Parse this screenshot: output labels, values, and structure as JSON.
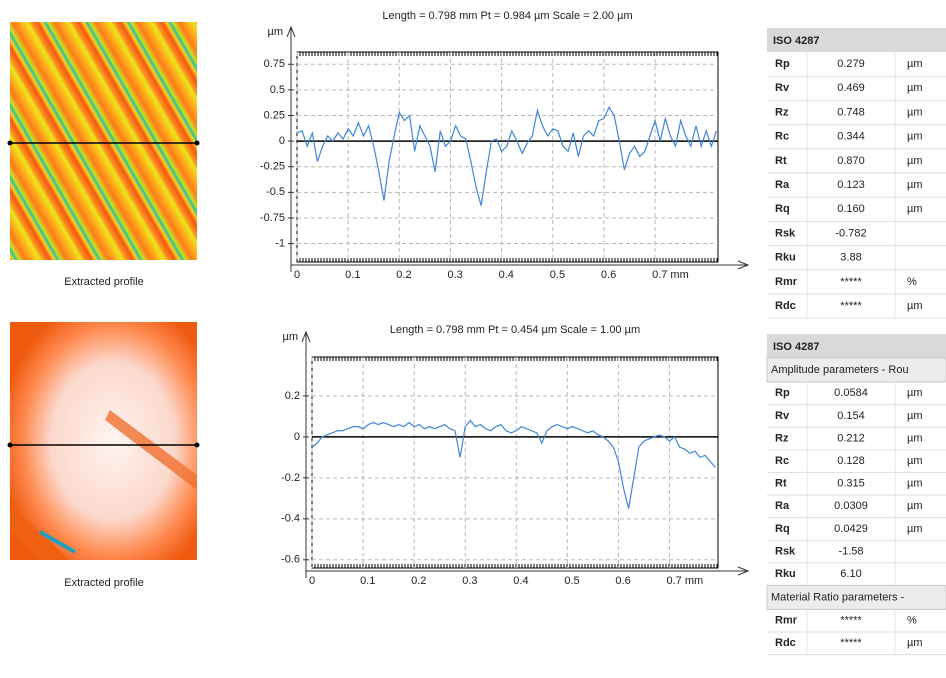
{
  "chart_data": [
    {
      "type": "line",
      "title": "Length = 0.798 mm  Pt = 0.984 µm  Scale = 2.00 µm",
      "y_label": "µm",
      "color": "#3f86d6",
      "xlim": [
        0,
        0.823
      ],
      "ylim": [
        -1.18,
        0.87
      ],
      "xticks": [
        0,
        0.1,
        0.2,
        0.3,
        0.4,
        0.5,
        0.6,
        {
          "value": 0.7,
          "label": "0.7 mm"
        }
      ],
      "yticks": [
        0.75,
        0.5,
        0.25,
        0,
        -0.25,
        -0.5,
        -0.75,
        -1
      ],
      "grid": true,
      "x": [
        0,
        0.01,
        0.02,
        0.03,
        0.04,
        0.05,
        0.06,
        0.07,
        0.08,
        0.09,
        0.1,
        0.11,
        0.12,
        0.13,
        0.14,
        0.15,
        0.16,
        0.17,
        0.18,
        0.19,
        0.2,
        0.21,
        0.22,
        0.23,
        0.24,
        0.25,
        0.26,
        0.27,
        0.28,
        0.29,
        0.3,
        0.31,
        0.32,
        0.33,
        0.34,
        0.35,
        0.36,
        0.37,
        0.38,
        0.39,
        0.4,
        0.41,
        0.42,
        0.43,
        0.44,
        0.45,
        0.46,
        0.47,
        0.48,
        0.49,
        0.5,
        0.51,
        0.52,
        0.53,
        0.54,
        0.55,
        0.56,
        0.57,
        0.58,
        0.59,
        0.6,
        0.61,
        0.62,
        0.63,
        0.64,
        0.65,
        0.66,
        0.67,
        0.68,
        0.69,
        0.7,
        0.71,
        0.72,
        0.73,
        0.74,
        0.75,
        0.76,
        0.77,
        0.78,
        0.79,
        0.8,
        0.81,
        0.82
      ],
      "values": [
        0.08,
        0.1,
        -0.05,
        0.08,
        -0.2,
        -0.05,
        0.05,
        0,
        0.08,
        0.02,
        0.12,
        0.05,
        0.18,
        0.05,
        0.15,
        -0.05,
        -0.3,
        -0.58,
        -0.2,
        0.05,
        0.28,
        0.2,
        0.25,
        -0.1,
        0.15,
        0.05,
        -0.05,
        -0.3,
        0.1,
        -0.05,
        0,
        0.15,
        0.05,
        0.02,
        -0.2,
        -0.45,
        -0.63,
        -0.3,
        0,
        0.02,
        -0.1,
        -0.05,
        0.1,
        0,
        -0.12,
        -0.02,
        0.05,
        0.3,
        0.15,
        0.05,
        0.12,
        0.1,
        -0.05,
        -0.1,
        0.08,
        -0.15,
        0.05,
        0.1,
        0.05,
        0.2,
        0.22,
        0.33,
        0.25,
        0,
        -0.28,
        -0.12,
        -0.05,
        -0.15,
        -0.1,
        0.05,
        0.2,
        0,
        0.22,
        0.05,
        -0.05,
        0.2,
        0.05,
        -0.05,
        0.15,
        -0.05,
        0.1,
        -0.05,
        0.1
      ]
    },
    {
      "type": "line",
      "title": "Length = 0.798 mm  Pt = 0.454 µm  Scale = 1.00 µm",
      "y_label": "µm",
      "color": "#3f86d6",
      "xlim": [
        0,
        0.795
      ],
      "ylim": [
        -0.64,
        0.39
      ],
      "xticks": [
        0,
        0.1,
        0.2,
        0.3,
        0.4,
        0.5,
        0.6,
        {
          "value": 0.7,
          "label": "0.7 mm"
        }
      ],
      "yticks": [
        0.2,
        0,
        -0.2,
        -0.4,
        -0.6
      ],
      "grid": true,
      "x": [
        0,
        0.01,
        0.02,
        0.03,
        0.04,
        0.05,
        0.06,
        0.07,
        0.08,
        0.09,
        0.1,
        0.11,
        0.12,
        0.13,
        0.14,
        0.15,
        0.16,
        0.17,
        0.18,
        0.19,
        0.2,
        0.21,
        0.22,
        0.23,
        0.24,
        0.25,
        0.26,
        0.27,
        0.28,
        0.29,
        0.3,
        0.31,
        0.32,
        0.33,
        0.34,
        0.35,
        0.36,
        0.37,
        0.38,
        0.39,
        0.4,
        0.41,
        0.42,
        0.43,
        0.44,
        0.45,
        0.46,
        0.47,
        0.48,
        0.49,
        0.5,
        0.51,
        0.52,
        0.53,
        0.54,
        0.55,
        0.56,
        0.57,
        0.58,
        0.59,
        0.6,
        0.61,
        0.62,
        0.63,
        0.64,
        0.65,
        0.66,
        0.67,
        0.68,
        0.69,
        0.7,
        0.71,
        0.72,
        0.73,
        0.74,
        0.75,
        0.76,
        0.77,
        0.78,
        0.79
      ],
      "values": [
        -0.05,
        -0.03,
        0,
        0.01,
        0.02,
        0.03,
        0.03,
        0.04,
        0.05,
        0.05,
        0.04,
        0.06,
        0.07,
        0.06,
        0.07,
        0.06,
        0.05,
        0.06,
        0.05,
        0.07,
        0.05,
        0.06,
        0.04,
        0.05,
        0.04,
        0.05,
        0.06,
        0.04,
        0.03,
        -0.1,
        0.05,
        0.08,
        0.05,
        0.06,
        0.04,
        0.03,
        0.05,
        0.06,
        0.03,
        0.02,
        0.03,
        0.05,
        0.04,
        0.03,
        0.02,
        -0.03,
        0.03,
        0.05,
        0.06,
        0.05,
        0.04,
        0.05,
        0.04,
        0.03,
        0.02,
        0.03,
        0.01,
        0,
        -0.02,
        -0.05,
        -0.12,
        -0.25,
        -0.35,
        -0.2,
        -0.05,
        -0.02,
        -0.01,
        0,
        0.01,
        0,
        -0.02,
        0,
        -0.05,
        -0.06,
        -0.08,
        -0.07,
        -0.1,
        -0.09,
        -0.12,
        -0.15
      ]
    }
  ],
  "images": [
    {
      "caption": "Extracted profile"
    },
    {
      "caption": "Extracted profile"
    }
  ],
  "tables": [
    {
      "title": "ISO 4287",
      "sections": [
        {
          "rows": [
            [
              "Rp",
              "0.279",
              "µm"
            ],
            [
              "Rv",
              "0.469",
              "µm"
            ],
            [
              "Rz",
              "0.748",
              "µm"
            ],
            [
              "Rc",
              "0.344",
              "µm"
            ],
            [
              "Rt",
              "0.870",
              "µm"
            ],
            [
              "Ra",
              "0.123",
              "µm"
            ],
            [
              "Rq",
              "0.160",
              "µm"
            ],
            [
              "Rsk",
              "-0.782"
            ],
            [
              "Rku",
              "3.88"
            ],
            [
              "Rmr",
              "*****",
              "%"
            ],
            [
              "Rdc",
              "*****",
              "µm"
            ]
          ]
        }
      ]
    },
    {
      "title": "ISO 4287",
      "sections": [
        {
          "heading": "Amplitude parameters - Rou",
          "rows": [
            [
              "Rp",
              "0.0584",
              "µm"
            ],
            [
              "Rv",
              "0.154",
              "µm"
            ],
            [
              "Rz",
              "0.212",
              "µm"
            ],
            [
              "Rc",
              "0.128",
              "µm"
            ],
            [
              "Rt",
              "0.315",
              "µm"
            ],
            [
              "Ra",
              "0.0309",
              "µm"
            ],
            [
              "Rq",
              "0.0429",
              "µm"
            ],
            [
              "Rsk",
              "-1.58"
            ],
            [
              "Rku",
              "6.10"
            ]
          ]
        },
        {
          "heading": "Material Ratio parameters -",
          "rows": [
            [
              "Rmr",
              "*****",
              "%"
            ],
            [
              "Rdc",
              "*****",
              "µm"
            ]
          ]
        }
      ]
    }
  ]
}
